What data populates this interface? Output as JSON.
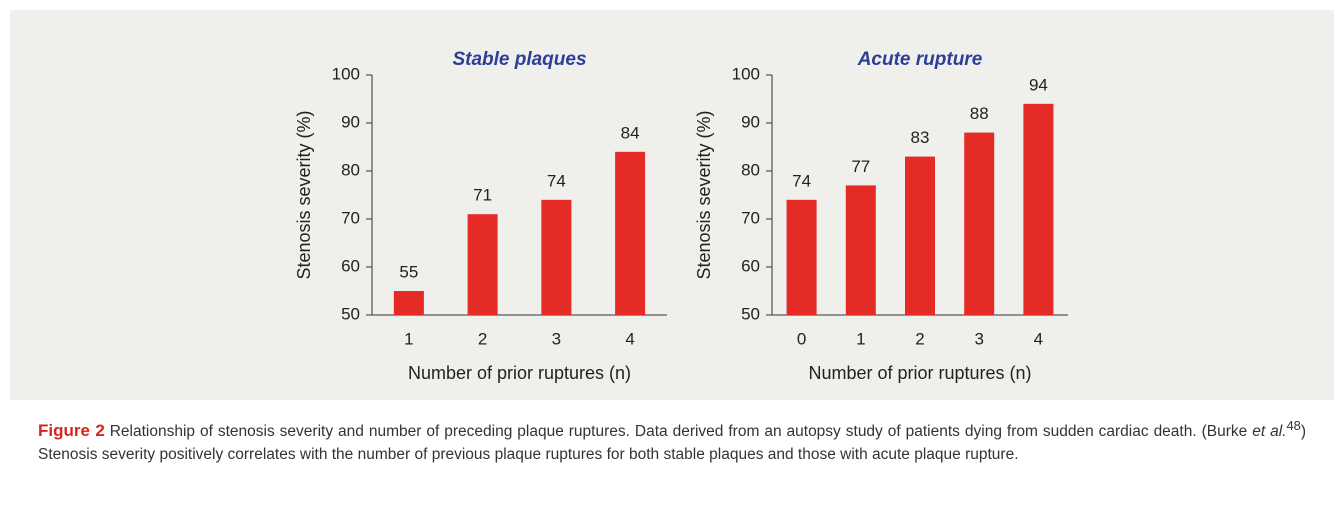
{
  "chart_data": [
    {
      "type": "bar",
      "title": "Stable plaques",
      "xlabel": "Number of prior ruptures (n)",
      "ylabel": "Stenosis severity (%)",
      "categories": [
        "1",
        "2",
        "3",
        "4"
      ],
      "values": [
        55,
        71,
        74,
        84
      ],
      "color": "#e52b25",
      "ylim": [
        50,
        100
      ],
      "yticks": [
        50,
        60,
        70,
        80,
        90,
        100
      ]
    },
    {
      "type": "bar",
      "title": "Acute rupture",
      "xlabel": "Number of prior ruptures (n)",
      "ylabel": "Stenosis severity (%)",
      "categories": [
        "0",
        "1",
        "2",
        "3",
        "4"
      ],
      "values": [
        74,
        77,
        83,
        88,
        94
      ],
      "color": "#e52b25",
      "ylim": [
        50,
        100
      ],
      "yticks": [
        50,
        60,
        70,
        80,
        90,
        100
      ]
    }
  ],
  "caption": {
    "label": "Figure 2",
    "text_before": "Relationship of stenosis severity and number of preceding plaque ruptures. Data derived from an autopsy study of patients dying from sudden cardiac death. (Burke ",
    "italic": "et al.",
    "superscript": "48",
    "text_after": ") Stenosis severity positively correlates with the number of previous plaque ruptures for both stable plaques and those with acute plaque rupture."
  }
}
